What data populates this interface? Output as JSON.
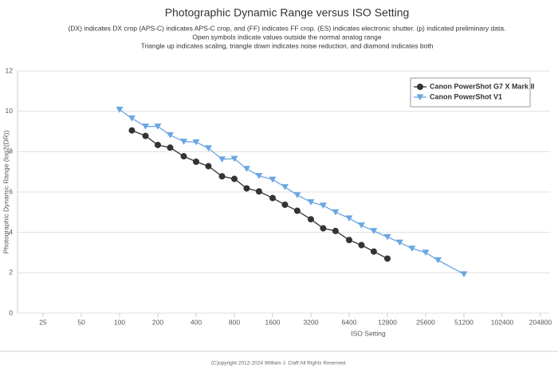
{
  "chart_data": {
    "type": "line",
    "title": "Photographic Dynamic Range versus ISO Setting",
    "subtitle": [
      "(DX) indicates DX crop (APS-C) indicates APS-C crop, and (FF) indicates FF crop. (ES) indicates electronic shutter. (p) indicated preliminary data.",
      "Open symbols indicate values outside the normal analog range",
      "Triangle up indicates scaling, triangle down indicates noise reduction, and diamond indicates both"
    ],
    "x_label": "ISO Setting",
    "y_label": "Photographic Dynamic Range (log2(DR))",
    "xscale": "log",
    "xlim": [
      15.75,
      243550
    ],
    "xticks": [
      25,
      50,
      100,
      200,
      400,
      800,
      1600,
      3200,
      6400,
      12800,
      25600,
      51200,
      102400,
      204800
    ],
    "ylim": [
      0,
      12
    ],
    "yticks": [
      0,
      2,
      4,
      6,
      8,
      10,
      12
    ],
    "grid": true,
    "legend": "top-right",
    "series": [
      {
        "name": "Canon PowerShot G7 X Mark II",
        "color": "#333333",
        "marker": "circle",
        "x": [
          125,
          160,
          200,
          250,
          320,
          400,
          500,
          640,
          800,
          1000,
          1250,
          1600,
          2000,
          2500,
          3200,
          4000,
          5000,
          6400,
          8000,
          10000,
          12800
        ],
        "values": [
          9.05,
          8.78,
          8.33,
          8.2,
          7.77,
          7.5,
          7.28,
          6.78,
          6.65,
          6.18,
          6.03,
          5.7,
          5.37,
          5.07,
          4.65,
          4.2,
          4.07,
          3.62,
          3.37,
          3.05,
          2.7
        ]
      },
      {
        "name": "Canon PowerShot V1",
        "color": "#6aa6e2",
        "marker": "triangle-down",
        "x": [
          100,
          125,
          160,
          200,
          250,
          320,
          400,
          500,
          640,
          800,
          1000,
          1250,
          1600,
          2000,
          2500,
          3200,
          4000,
          5000,
          6400,
          8000,
          10000,
          12800,
          16000,
          20000,
          25600,
          32000,
          51200
        ],
        "values": [
          10.08,
          9.65,
          9.25,
          9.25,
          8.82,
          8.5,
          8.47,
          8.17,
          7.62,
          7.65,
          7.15,
          6.8,
          6.62,
          6.25,
          5.85,
          5.5,
          5.33,
          5.0,
          4.7,
          4.35,
          4.07,
          3.77,
          3.5,
          3.2,
          3.0,
          2.62,
          1.93
        ]
      }
    ]
  },
  "footer": "(C)opyright 2012-2024 William J. Claff All Rights Reserved."
}
